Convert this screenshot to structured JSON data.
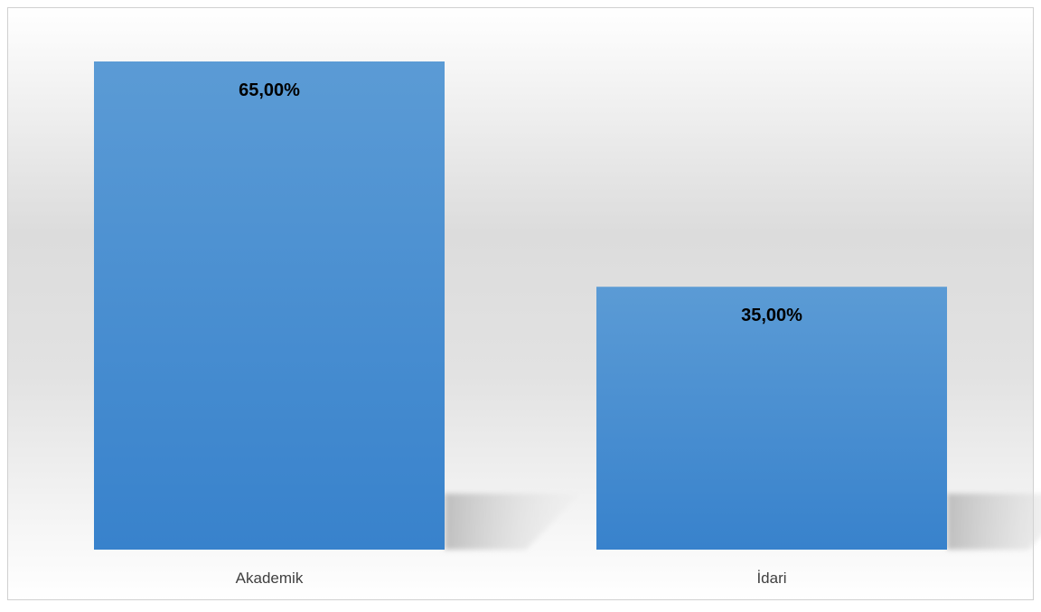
{
  "chart_data": {
    "type": "bar",
    "categories": [
      "Akademik",
      "İdari"
    ],
    "values": [
      65,
      35
    ],
    "data_labels": [
      "65,00%",
      "35,00%"
    ],
    "title": "",
    "xlabel": "",
    "ylabel": "",
    "ylim": [
      0,
      70
    ],
    "grid": false,
    "legend": "none",
    "colors": {
      "bar_top": "#5b9bd5",
      "bar_bottom": "#3882cc",
      "label_text": "#000000",
      "axis_text": "#404040",
      "background_light": "#ffffff",
      "background_dark": "#d9d9d9",
      "border": "#d0d0d0"
    }
  }
}
